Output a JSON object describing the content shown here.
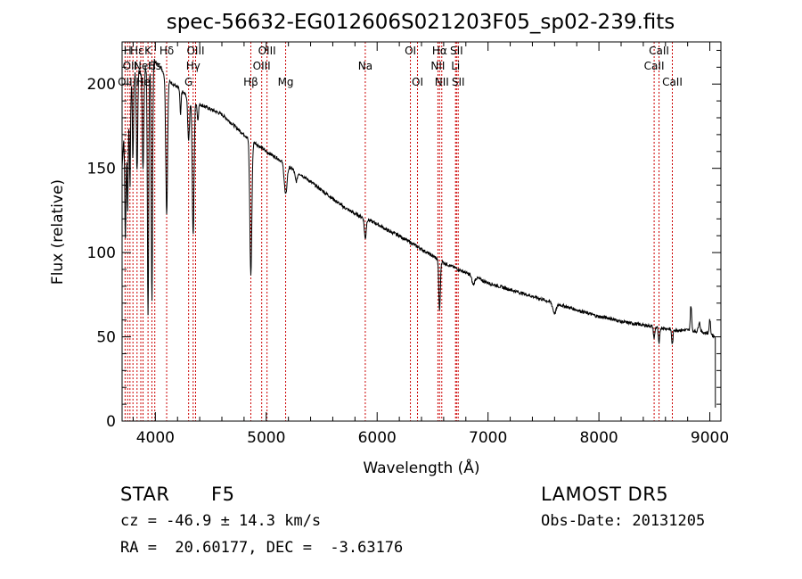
{
  "chart_data": {
    "type": "line",
    "title": "spec-56632-EG012606S021203F05_sp02-239.fits",
    "xlabel": "Wavelength (Å)",
    "ylabel": "Flux (relative)",
    "xlim": [
      3700,
      9100
    ],
    "ylim": [
      0,
      225
    ],
    "x_ticks": [
      4000,
      5000,
      6000,
      7000,
      8000,
      9000
    ],
    "y_ticks": [
      0,
      50,
      100,
      150,
      200
    ],
    "grid": false,
    "line_color": "#000000",
    "marker_color": "#cc0000",
    "continuum": [
      [
        3700,
        150
      ],
      [
        3730,
        190
      ],
      [
        3760,
        198
      ],
      [
        3800,
        205
      ],
      [
        3850,
        208
      ],
      [
        3900,
        210
      ],
      [
        3950,
        212
      ],
      [
        4000,
        213
      ],
      [
        4050,
        210
      ],
      [
        4100,
        203
      ],
      [
        4200,
        198
      ],
      [
        4300,
        192
      ],
      [
        4400,
        188
      ],
      [
        4500,
        185
      ],
      [
        4600,
        182
      ],
      [
        4700,
        176
      ],
      [
        4800,
        170
      ],
      [
        4900,
        165
      ],
      [
        5000,
        160
      ],
      [
        5100,
        156
      ],
      [
        5200,
        151
      ],
      [
        5300,
        147
      ],
      [
        5400,
        142
      ],
      [
        5500,
        137
      ],
      [
        5600,
        132
      ],
      [
        5700,
        127
      ],
      [
        5800,
        123
      ],
      [
        5900,
        120
      ],
      [
        6000,
        117
      ],
      [
        6100,
        113
      ],
      [
        6200,
        110
      ],
      [
        6300,
        106
      ],
      [
        6400,
        102
      ],
      [
        6500,
        98
      ],
      [
        6600,
        94
      ],
      [
        6700,
        91
      ],
      [
        6800,
        88
      ],
      [
        6900,
        85
      ],
      [
        7000,
        82
      ],
      [
        7100,
        80
      ],
      [
        7200,
        78
      ],
      [
        7300,
        76
      ],
      [
        7400,
        74
      ],
      [
        7500,
        72
      ],
      [
        7600,
        70
      ],
      [
        7700,
        68
      ],
      [
        7800,
        66
      ],
      [
        7900,
        64
      ],
      [
        8000,
        62
      ],
      [
        8100,
        61
      ],
      [
        8200,
        59
      ],
      [
        8300,
        58
      ],
      [
        8400,
        57
      ],
      [
        8500,
        56
      ],
      [
        8600,
        55
      ],
      [
        8700,
        54
      ],
      [
        8800,
        54
      ],
      [
        8900,
        53
      ],
      [
        9000,
        52
      ],
      [
        9050,
        50
      ]
    ],
    "absorption_features": [
      {
        "x": 3730,
        "depth": 80,
        "width": 6
      },
      {
        "x": 3750,
        "depth": 70,
        "width": 6
      },
      {
        "x": 3771,
        "depth": 60,
        "width": 5
      },
      {
        "x": 3798,
        "depth": 50,
        "width": 5
      },
      {
        "x": 3835,
        "depth": 60,
        "width": 6
      },
      {
        "x": 3889,
        "depth": 60,
        "width": 7
      },
      {
        "x": 3934,
        "depth": 150,
        "width": 6
      },
      {
        "x": 3969,
        "depth": 140,
        "width": 6
      },
      {
        "x": 4102,
        "depth": 80,
        "width": 8
      },
      {
        "x": 4227,
        "depth": 15,
        "width": 5
      },
      {
        "x": 4300,
        "depth": 25,
        "width": 8
      },
      {
        "x": 4341,
        "depth": 80,
        "width": 8
      },
      {
        "x": 4383,
        "depth": 10,
        "width": 6
      },
      {
        "x": 4861,
        "depth": 80,
        "width": 9
      },
      {
        "x": 5175,
        "depth": 18,
        "width": 12
      },
      {
        "x": 5270,
        "depth": 6,
        "width": 10
      },
      {
        "x": 5893,
        "depth": 12,
        "width": 8
      },
      {
        "x": 6563,
        "depth": 30,
        "width": 7
      },
      {
        "x": 6867,
        "depth": 5,
        "width": 12
      },
      {
        "x": 7600,
        "depth": 6,
        "width": 15
      },
      {
        "x": 8498,
        "depth": 7,
        "width": 6
      },
      {
        "x": 8542,
        "depth": 10,
        "width": 6
      },
      {
        "x": 8662,
        "depth": 9,
        "width": 6
      }
    ],
    "emission_features": [
      {
        "x": 8830,
        "height": 15,
        "width": 6
      },
      {
        "x": 8905,
        "height": 6,
        "width": 8
      },
      {
        "x": 9000,
        "height": 8,
        "width": 6
      }
    ],
    "line_markers": [
      {
        "x": 3727,
        "label": "OII",
        "row": 2
      },
      {
        "x": 3750,
        "label": "H",
        "row": 0
      },
      {
        "x": 3771,
        "label": "OII",
        "row": 1
      },
      {
        "x": 3798,
        "label": "",
        "row": 2
      },
      {
        "x": 3835,
        "label": "Hε",
        "row": 0
      },
      {
        "x": 3869,
        "label": "Ne",
        "row": 1
      },
      {
        "x": 3889,
        "label": "He",
        "row": 2
      },
      {
        "x": 3934,
        "label": "K",
        "row": 0
      },
      {
        "x": 3969,
        "label": "H",
        "row": 1
      },
      {
        "x": 3995,
        "label": "Cs",
        "row": 1
      },
      {
        "x": 4102,
        "label": "Hδ",
        "row": 0
      },
      {
        "x": 4300,
        "label": "G",
        "row": 2
      },
      {
        "x": 4341,
        "label": "Hγ",
        "row": 1
      },
      {
        "x": 4363,
        "label": "OIII",
        "row": 0
      },
      {
        "x": 4861,
        "label": "Hβ",
        "row": 2
      },
      {
        "x": 4959,
        "label": "OIII",
        "row": 1
      },
      {
        "x": 5007,
        "label": "OIII",
        "row": 0
      },
      {
        "x": 5175,
        "label": "Mg",
        "row": 2
      },
      {
        "x": 5893,
        "label": "Na",
        "row": 1
      },
      {
        "x": 6300,
        "label": "OI",
        "row": 0
      },
      {
        "x": 6364,
        "label": "OI",
        "row": 2
      },
      {
        "x": 6548,
        "label": "NII",
        "row": 1
      },
      {
        "x": 6563,
        "label": "Hα",
        "row": 0
      },
      {
        "x": 6583,
        "label": "NII",
        "row": 2
      },
      {
        "x": 6707,
        "label": "Li",
        "row": 1
      },
      {
        "x": 6716,
        "label": "SII",
        "row": 0
      },
      {
        "x": 6731,
        "label": "SII",
        "row": 2
      },
      {
        "x": 8498,
        "label": "CaII",
        "row": 1
      },
      {
        "x": 8542,
        "label": "CaII",
        "row": 0
      },
      {
        "x": 8662,
        "label": "CaII",
        "row": 2
      }
    ]
  },
  "info": {
    "class": "STAR",
    "subclass": "F5",
    "survey": "LAMOST DR5",
    "velocity": "cz = -46.9 ± 14.3 km/s",
    "obs_date": "Obs-Date: 20131205",
    "coords": "RA =  20.60177, DEC =  -3.63176"
  }
}
